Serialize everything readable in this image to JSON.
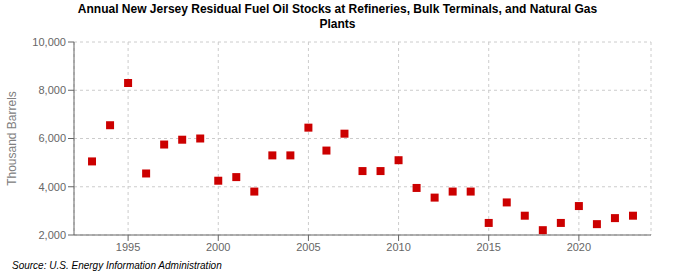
{
  "chart_data": {
    "type": "scatter",
    "title": "Annual New Jersey Residual Fuel Oil Stocks at Refineries, Bulk Terminals, and Natural Gas\nPlants",
    "ylabel": "Thousand Barrels",
    "source": "Source: U.S. Energy Information Administration",
    "x": [
      1993,
      1994,
      1995,
      1996,
      1997,
      1998,
      1999,
      2000,
      2001,
      2002,
      2003,
      2004,
      2005,
      2006,
      2007,
      2008,
      2009,
      2010,
      2011,
      2012,
      2013,
      2014,
      2015,
      2016,
      2017,
      2018,
      2019,
      2020,
      2021,
      2022,
      2023
    ],
    "values": [
      5050,
      6550,
      8300,
      4550,
      5750,
      5950,
      6000,
      4250,
      4400,
      3800,
      5300,
      5300,
      6450,
      5500,
      6200,
      4650,
      4650,
      5100,
      3950,
      3550,
      3800,
      3800,
      2500,
      3350,
      2800,
      2200,
      2500,
      3200,
      2450,
      2700,
      2800
    ],
    "color": "#cc0000",
    "marker": "square",
    "grid": true,
    "xlim": [
      1992,
      2024
    ],
    "xticks": [
      1995,
      2000,
      2005,
      2010,
      2015,
      2020
    ],
    "ylim": [
      2000,
      10000
    ],
    "yticks": [
      {
        "value": 2000,
        "label": "2,000"
      },
      {
        "value": 4000,
        "label": "4,000"
      },
      {
        "value": 6000,
        "label": "6,000"
      },
      {
        "value": 8000,
        "label": "8,000"
      },
      {
        "value": 10000,
        "label": "10,000"
      }
    ]
  }
}
